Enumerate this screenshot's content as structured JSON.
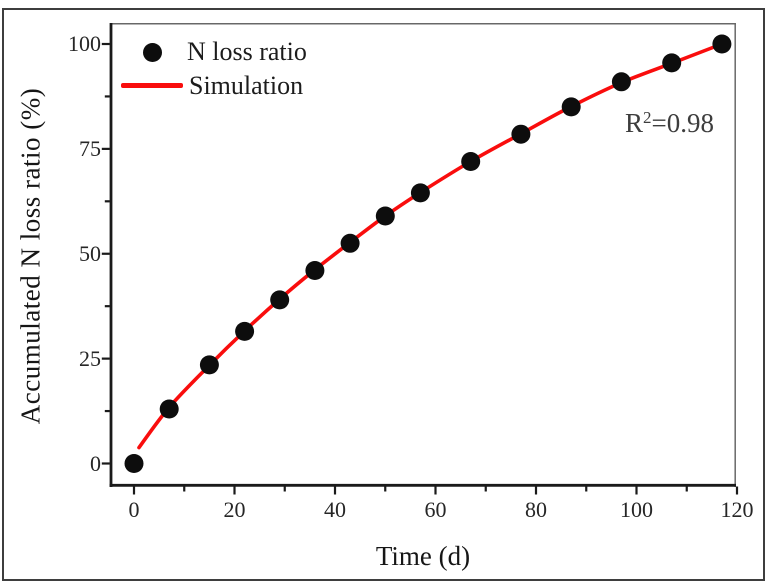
{
  "figure": {
    "background": "#ffffff",
    "frame_color": "#3e3e3e"
  },
  "chart_data": {
    "type": "scatter",
    "title": "",
    "xlabel": "Time (d)",
    "ylabel": "Accumulated N loss ratio (%)",
    "xlim": [
      -5,
      120
    ],
    "ylim": [
      -5.6,
      105
    ],
    "grid": false,
    "legend_position": "upper-left-inside",
    "x_ticks": [
      0,
      20,
      40,
      60,
      80,
      100,
      120
    ],
    "x_minor_ticks": [
      10,
      30,
      50,
      70,
      90,
      110
    ],
    "y_ticks": [
      0,
      25,
      50,
      75,
      100
    ],
    "y_minor_ticks": [
      12.5,
      37.5,
      62.5,
      87.5
    ],
    "legend": [
      {
        "label": "N loss ratio",
        "marker": "dot-icon",
        "color": "#0d0d0d"
      },
      {
        "label": "Simulation",
        "marker": "line-icon",
        "color": "#f90d0d"
      }
    ],
    "annotation": {
      "base": "R",
      "sup": "2",
      "rest": "=0.98"
    },
    "series": [
      {
        "name": "N loss ratio",
        "type": "scatter",
        "color": "#0d0d0d",
        "marker_radius": 9.5,
        "x": [
          0,
          7,
          15,
          22,
          29,
          36,
          43,
          50,
          57,
          67,
          77,
          87,
          97,
          107,
          117
        ],
        "y": [
          0,
          13,
          23.5,
          31.5,
          39,
          46,
          52.5,
          59,
          64.5,
          72,
          78.5,
          85,
          91,
          95.5,
          100
        ]
      },
      {
        "name": "Simulation",
        "type": "line",
        "color": "#f90d0d",
        "line_width": 3.6,
        "x": [
          1,
          7,
          15,
          22,
          29,
          36,
          43,
          50,
          57,
          67,
          77,
          87,
          97,
          107,
          117
        ],
        "y": [
          3.8,
          13.4,
          23.4,
          31.6,
          39.2,
          46.2,
          52.7,
          59,
          64.6,
          72,
          78.6,
          85.1,
          90.8,
          95.4,
          100
        ]
      }
    ],
    "style": {
      "spine_color": "#1a1a1a",
      "spine_width": 2.8,
      "top_right_spine_color": "#686868",
      "top_right_spine_width": 1.5,
      "tick_color": "#1a1a1a",
      "tick_width": 2.2,
      "major_tick_len": 8,
      "minor_tick_len": 5
    }
  }
}
